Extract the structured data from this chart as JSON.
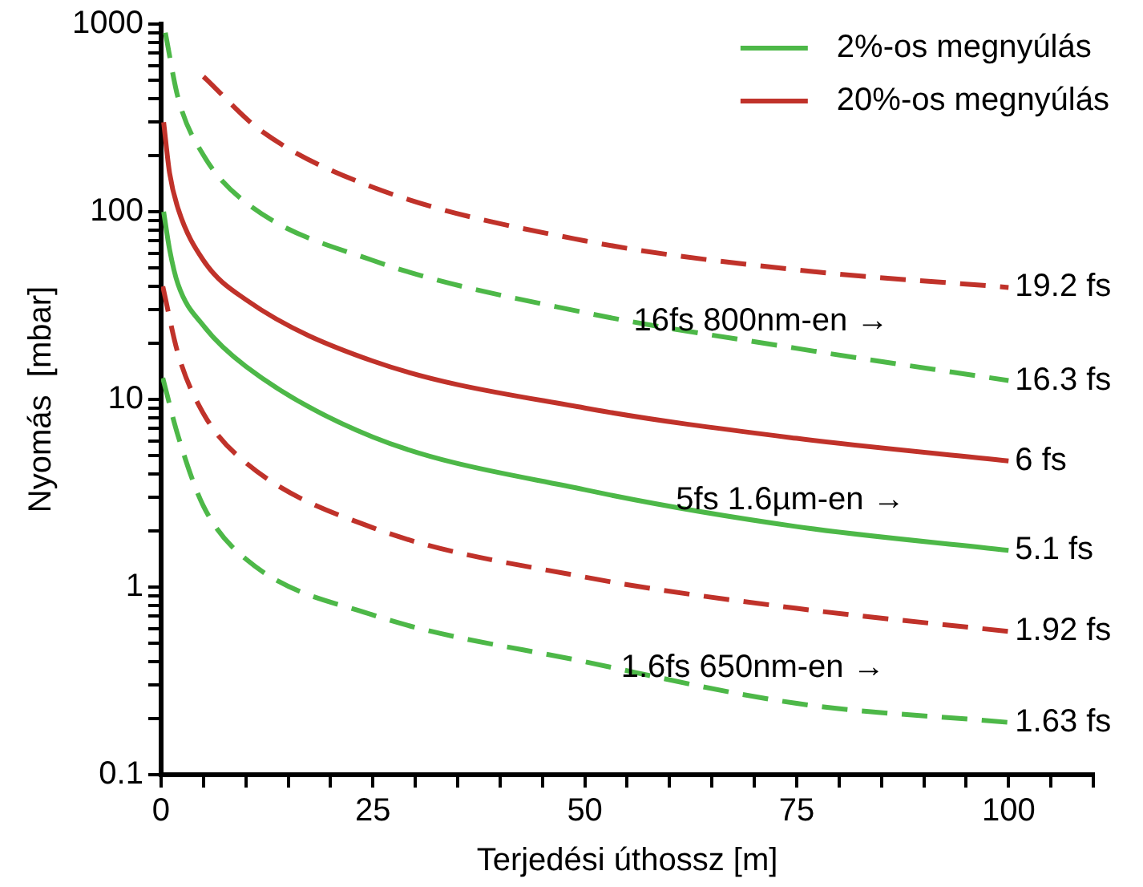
{
  "chart_data": {
    "type": "line",
    "xlabel": "Terjedési úthossz [m]",
    "ylabel": "Nyomás  [mbar]",
    "log": "y",
    "legend": "top right",
    "grid": false,
    "line_style": "solid",
    "marker": "none",
    "xlim": [
      0,
      110
    ],
    "xticks": [
      0,
      {
        "value": 5,
        "label": null
      },
      {
        "value": 10,
        "label": null
      },
      {
        "value": 15,
        "label": null
      },
      {
        "value": 20,
        "label": null
      },
      25,
      {
        "value": 30,
        "label": null
      },
      {
        "value": 35,
        "label": null
      },
      {
        "value": 40,
        "label": null
      },
      {
        "value": 45,
        "label": null
      },
      50,
      {
        "value": 55,
        "label": null
      },
      {
        "value": 60,
        "label": null
      },
      {
        "value": 65,
        "label": null
      },
      {
        "value": 70,
        "label": null
      },
      75,
      {
        "value": 80,
        "label": null
      },
      {
        "value": 85,
        "label": null
      },
      {
        "value": 90,
        "label": null
      },
      {
        "value": 95,
        "label": null
      },
      100,
      {
        "value": 105,
        "label": null
      },
      {
        "value": 110,
        "label": null
      }
    ],
    "ylim": [
      0.1,
      1000
    ],
    "yticks": [
      {
        "value": 0.1,
        "label": "0.1"
      },
      {
        "value": 0.2,
        "label": null
      },
      {
        "value": 0.3,
        "label": null
      },
      {
        "value": 0.4,
        "label": null
      },
      {
        "value": 0.5,
        "label": null
      },
      {
        "value": 0.6,
        "label": null
      },
      {
        "value": 0.7,
        "label": null
      },
      {
        "value": 0.8,
        "label": null
      },
      {
        "value": 0.9,
        "label": null
      },
      1,
      {
        "value": 2,
        "label": null
      },
      {
        "value": 3,
        "label": null
      },
      {
        "value": 4,
        "label": null
      },
      {
        "value": 5,
        "label": null
      },
      {
        "value": 6,
        "label": null
      },
      {
        "value": 7,
        "label": null
      },
      {
        "value": 8,
        "label": null
      },
      {
        "value": 9,
        "label": null
      },
      10,
      {
        "value": 20,
        "label": null
      },
      {
        "value": 30,
        "label": null
      },
      {
        "value": 40,
        "label": null
      },
      {
        "value": 50,
        "label": null
      },
      {
        "value": 60,
        "label": null
      },
      {
        "value": 70,
        "label": null
      },
      {
        "value": 80,
        "label": null
      },
      {
        "value": 90,
        "label": null
      },
      100,
      {
        "value": 200,
        "label": null
      },
      {
        "value": 300,
        "label": null
      },
      {
        "value": 400,
        "label": null
      },
      {
        "value": 500,
        "label": null
      },
      {
        "value": 600,
        "label": null
      },
      {
        "value": 700,
        "label": null
      },
      {
        "value": 800,
        "label": null
      },
      {
        "value": 900,
        "label": null
      },
      1000
    ],
    "series": [
      {
        "name": "2%-os megnyúlás",
        "color": "#4db848",
        "x": [
          0.3,
          1,
          2,
          5,
          10,
          25,
          50,
          75,
          100
        ],
        "values": [
          100,
          63,
          41,
          24.7,
          15,
          6.3,
          3.3,
          2.1,
          1.57
        ]
      },
      {
        "name": "20%-os megnyúlás",
        "color": "#c0322a",
        "x": [
          0.3,
          1,
          2,
          5,
          10,
          25,
          50,
          75,
          100
        ],
        "values": [
          300,
          161,
          104,
          55,
          34,
          16,
          9,
          6.2,
          4.7
        ]
      },
      {
        "color": "#c0322a",
        "line_style": "dashed",
        "x": [
          5,
          11.8,
          25,
          50,
          75,
          100
        ],
        "values": [
          525,
          270,
          135,
          70,
          49,
          39.5
        ]
      },
      {
        "color": "#4db848",
        "line_style": "dashed",
        "x": [
          0.5,
          2,
          5,
          10,
          25,
          50,
          75,
          100
        ],
        "values": [
          900,
          405,
          200,
          112,
          55,
          29,
          18.7,
          12.6
        ]
      },
      {
        "color": "#c0322a",
        "line_style": "dashed",
        "x": [
          0.2,
          2,
          5,
          10,
          25,
          50,
          75,
          100
        ],
        "values": [
          40,
          17.5,
          8.4,
          4.6,
          2.07,
          1.13,
          0.77,
          0.58
        ]
      },
      {
        "color": "#4db848",
        "line_style": "dashed",
        "x": [
          0.2,
          2,
          5,
          10,
          25,
          50,
          75,
          100
        ],
        "values": [
          13,
          6.4,
          2.7,
          1.41,
          0.71,
          0.4,
          0.24,
          0.19
        ]
      }
    ],
    "annotations": [
      {
        "text": "19.2 fs",
        "x": 100,
        "y": 39.5
      },
      {
        "text": "16.3 fs",
        "x": 100,
        "y": 12.6
      },
      {
        "text": "6 fs",
        "x": 100,
        "y": 4.7
      },
      {
        "text": "5.1 fs",
        "x": 100,
        "y": 1.57
      },
      {
        "text": "1.92 fs",
        "x": 100,
        "y": 0.58
      },
      {
        "text": "1.63 fs",
        "x": 100,
        "y": 0.19
      },
      {
        "text": "16fs 800nm-en →",
        "x": 55,
        "y": 26
      },
      {
        "text": "5fs 1.6µm-en →",
        "x": 60,
        "y": 2.9
      },
      {
        "text": "1.6fs 650nm-en →",
        "x": 53.5,
        "y": 0.37
      }
    ]
  }
}
